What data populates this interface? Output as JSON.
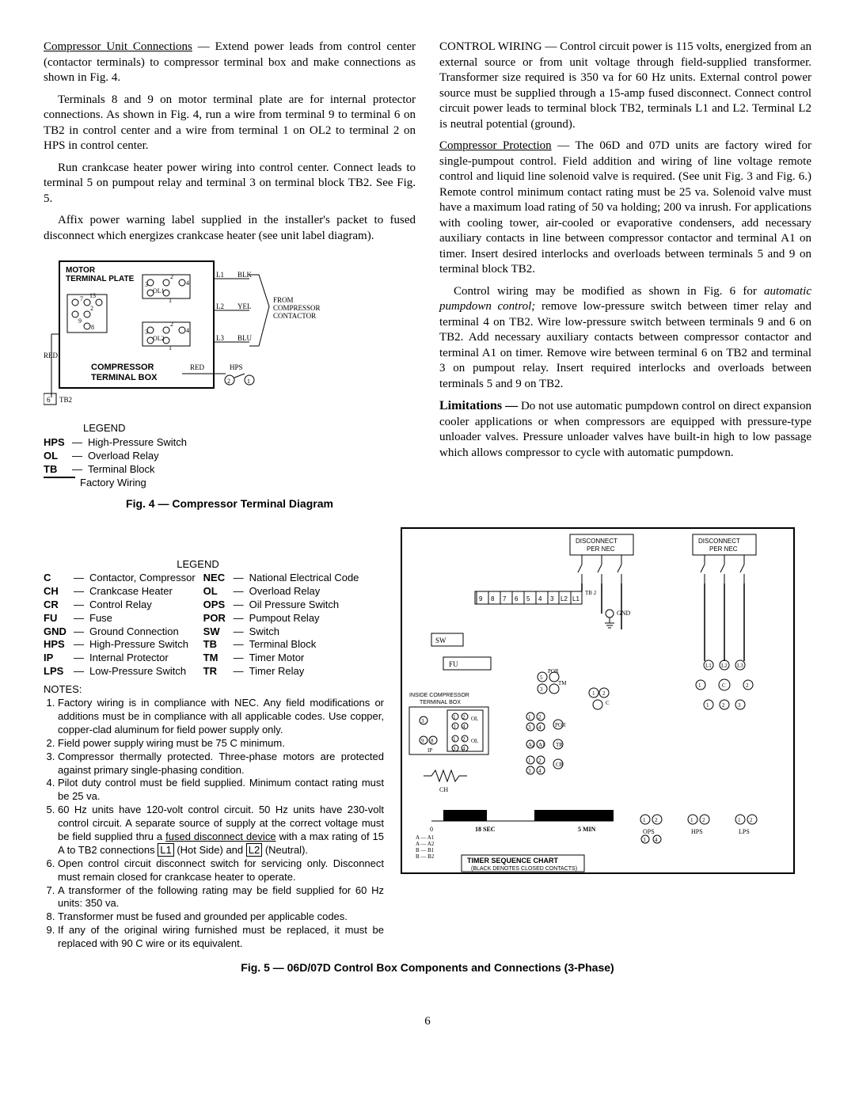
{
  "left": {
    "p1_lead": "Compressor Unit Connections",
    "p1": " — Extend power leads from control center (contactor terminals) to compressor terminal box and make connections as shown in Fig. 4.",
    "p2": "Terminals 8 and 9 on motor terminal plate are for internal protector connections. As shown in Fig. 4, run a wire from terminal 9 to terminal 6 on TB2 in control center and a wire from terminal 1 on OL2 to terminal 2 on HPS in control center.",
    "p3": "Run crankcase heater power wiring into control center. Connect leads to terminal 5 on pumpout relay and terminal 3 on terminal block TB2. See Fig. 5.",
    "p4": "Affix power warning label supplied in the installer's packet to fused disconnect which energizes crankcase heater (see unit label diagram)."
  },
  "fig4": {
    "legend_title": "LEGEND",
    "items": [
      {
        "abbr": "HPS",
        "desc": "High-Pressure Switch"
      },
      {
        "abbr": "OL",
        "desc": "Overload Relay"
      },
      {
        "abbr": "TB",
        "desc": "Terminal Block"
      }
    ],
    "factory_wiring": "Factory Wiring",
    "caption": "Fig. 4 — Compressor Terminal Diagram",
    "diagramLabels": {
      "motor": "MOTOR\nTERMINAL PLATE",
      "compressor": "COMPRESSOR\nTERMINAL BOX",
      "from": "FROM\nCOMPRESSOR\nCONTACTOR",
      "wires": [
        "BLK",
        "YEL",
        "BLU",
        "RED"
      ],
      "hps": "HPS",
      "tb2": "TB2",
      "terminals": [
        "O1",
        "O2",
        "O3",
        "O4",
        "O5",
        "O6",
        "O7",
        "O8",
        "O9",
        "L1",
        "L2",
        "L3",
        "OL1",
        "OL2",
        "1",
        "2",
        "3",
        "4",
        "6"
      ]
    }
  },
  "right": {
    "p1": "CONTROL WIRING — Control circuit power is 115 volts, energized from an external source or from unit voltage through field-supplied transformer. Transformer size required is 350 va for 60 Hz units. External control power source must be supplied through a 15-amp fused disconnect. Connect control circuit power leads to terminal block TB2, terminals L1 and L2. Terminal L2 is neutral potential (ground).",
    "p2_lead": "Compressor Protection",
    "p2": " — The 06D and 07D units are factory wired for single-pumpout control. Field addition and wiring of line voltage remote control and liquid line solenoid valve is required. (See unit Fig. 3 and Fig. 6.) Remote control minimum contact rating must be 25 va. Solenoid valve must have a maximum load rating of 50 va holding; 200 va inrush. For applications with cooling tower, air-cooled or evaporative condensers, add necessary auxiliary contacts in line between compressor contactor and terminal A1 on timer. Insert desired interlocks and overloads between terminals 5 and 9 on terminal block TB2.",
    "p3a": "Control wiring may be modified as shown in Fig. 6 for ",
    "p3_em": "automatic pumpdown control;",
    "p3b": " remove low-pressure switch between timer relay and terminal 4 on TB2. Wire low-pressure switch between terminals 9 and 6 on TB2. Add necessary auxiliary contacts between compressor contactor and terminal A1 on timer. Remove wire between terminal 6 on TB2 and terminal 3 on pumpout relay. Insert required interlocks and overloads between terminals 5 and 9 on TB2.",
    "p4_lead": "Limitations —",
    "p4": "  Do not use automatic pumpdown control on direct expansion cooler applications or when compressors are equipped with pressure-type unloader valves. Pressure unloader valves have built-in high to low passage which allows compressor to cycle with automatic pumpdown."
  },
  "legend5": {
    "title": "LEGEND",
    "col1": [
      {
        "abbr": "C",
        "desc": "Contactor, Compressor"
      },
      {
        "abbr": "CH",
        "desc": "Crankcase Heater"
      },
      {
        "abbr": "CR",
        "desc": "Control Relay"
      },
      {
        "abbr": "FU",
        "desc": "Fuse"
      },
      {
        "abbr": "GND",
        "desc": "Ground Connection"
      },
      {
        "abbr": "HPS",
        "desc": "High-Pressure Switch"
      },
      {
        "abbr": "IP",
        "desc": "Internal Protector"
      },
      {
        "abbr": "LPS",
        "desc": "Low-Pressure Switch"
      }
    ],
    "col2": [
      {
        "abbr": "NEC",
        "desc": "National Electrical Code"
      },
      {
        "abbr": "OL",
        "desc": "Overload Relay"
      },
      {
        "abbr": "OPS",
        "desc": "Oil Pressure Switch"
      },
      {
        "abbr": "POR",
        "desc": "Pumpout Relay"
      },
      {
        "abbr": "SW",
        "desc": "Switch"
      },
      {
        "abbr": "TB",
        "desc": "Terminal Block"
      },
      {
        "abbr": "TM",
        "desc": "Timer Motor"
      },
      {
        "abbr": "TR",
        "desc": "Timer Relay"
      }
    ]
  },
  "notes": {
    "title": "NOTES:",
    "items": [
      "Factory wiring is in compliance with NEC. Any field modifications or additions must be in compliance with all applicable codes. Use copper, copper-clad aluminum for field power supply only.",
      "Field power supply wiring must be 75 C minimum.",
      "Compressor thermally protected. Three-phase motors are protected against primary single-phasing condition.",
      "Pilot duty control must be field supplied. Minimum contact rating must be 25 va.",
      "60 Hz units have 120-volt control circuit. 50 Hz units have 230-volt control circuit. A separate source of supply at the correct voltage must be field supplied thru a fused disconnect device with a max rating of 15 A to TB2 connections |L1| (Hot Side) and |L2| (Neutral).",
      "Open control circuit disconnect switch for servicing only. Disconnect must remain closed for crankcase heater to operate.",
      "A transformer of the following rating may be field supplied for 60 Hz units: 350 va.",
      "Transformer must be fused and grounded per applicable codes.",
      "If any of the original wiring furnished must be replaced, it must be replaced with 90 C wire or its equivalent."
    ],
    "boxed": {
      "L1": "L1",
      "L2": "L2"
    }
  },
  "fig5": {
    "caption": "Fig. 5 — 06D/07D Control Box Components and Connections (3-Phase)",
    "diagramLabels": {
      "disconnect": "DISCONNECT\nPER NEC",
      "tb2": "TB 2",
      "gnd": "GND",
      "sw": "SW",
      "fu": "FU",
      "inside": "INSIDE COMPRESSOR\nTERMINAL BOX",
      "ol": "OL",
      "ip": "IP",
      "ch": "CH",
      "tr": "TR",
      "por": "POR",
      "cr": "CR",
      "tm": "TM",
      "ops": "OPS",
      "hps": "HPS",
      "lps": "LPS",
      "c": "C",
      "tb2nums": [
        "9",
        "8",
        "7",
        "6",
        "5",
        "4",
        "3",
        "L2",
        "L1"
      ],
      "timer": "TIMER SEQUENCE CHART\n(BLACK DENOTES CLOSED CONTACTS)",
      "sec18": "18 SEC",
      "min5": "5 MIN",
      "zero": "0",
      "a_legend": [
        "A — A1",
        "A — A2",
        "B — B1",
        "B — B2"
      ],
      "nodeNums": [
        "1",
        "2",
        "3",
        "4",
        "5",
        "6",
        "7",
        "8",
        "9",
        "L1",
        "L2",
        "L3",
        "A1",
        "A2",
        "B1",
        "B2"
      ]
    }
  },
  "pagenum": "6"
}
